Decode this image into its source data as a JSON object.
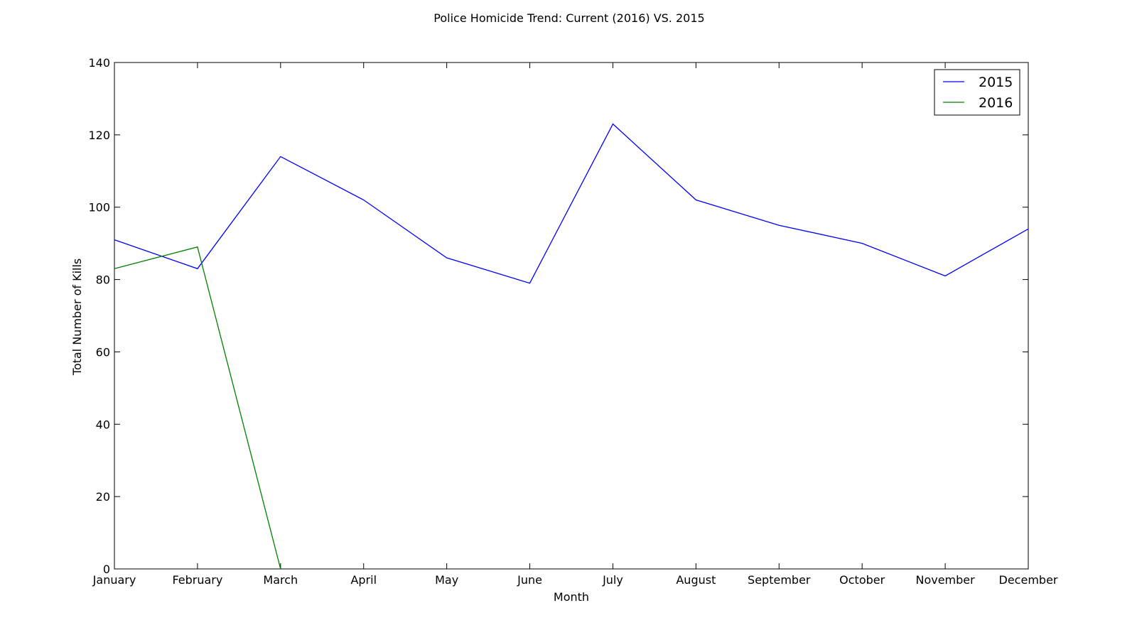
{
  "chart_data": {
    "type": "line",
    "title": "Police Homicide Trend: Current (2016) VS. 2015",
    "xlabel": "Month",
    "ylabel": "Total Number of Kills",
    "ylim": [
      0,
      140
    ],
    "yticks": [
      "0",
      "20",
      "40",
      "60",
      "80",
      "100",
      "120",
      "140"
    ],
    "categories": [
      "January",
      "February",
      "March",
      "April",
      "May",
      "June",
      "July",
      "August",
      "September",
      "October",
      "November",
      "December"
    ],
    "series": [
      {
        "name": "2015",
        "color": "#0000ff",
        "values": [
          91,
          83,
          114,
          102,
          86,
          79,
          123,
          102,
          95,
          90,
          81,
          94
        ]
      },
      {
        "name": "2016",
        "color": "#008000",
        "values": [
          83,
          89,
          0,
          null,
          null,
          null,
          null,
          null,
          null,
          null,
          null,
          null
        ]
      }
    ],
    "legend_position": "top-right",
    "grid": false
  }
}
